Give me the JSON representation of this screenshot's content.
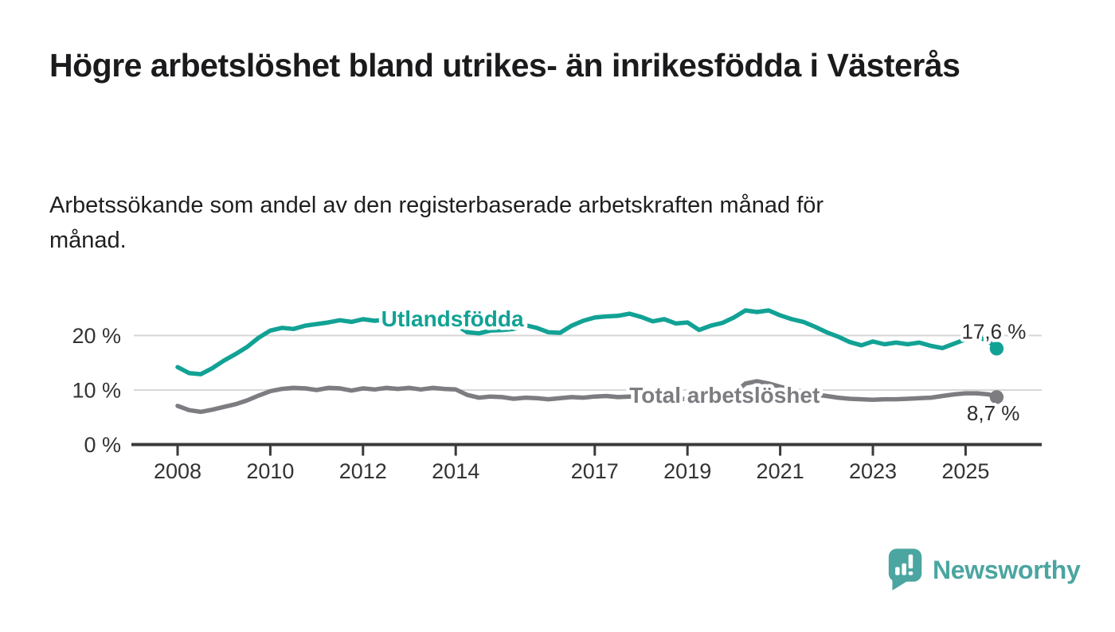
{
  "title": "Högre arbetslöshet bland utrikes- än inrikesfödda i Västerås",
  "subtitle": "Arbetssökande som andel av den registerbaserade arbetskraften månad för månad.",
  "branding": {
    "logo_text": "Newsworthy",
    "logo_icon": "speech-bubble-bar-chart-icon",
    "brand_color": "#4BA5A0"
  },
  "colors": {
    "background": "#FFFFFF",
    "title_text": "#1B1B1D",
    "axis": "#3A3A3A",
    "gridline": "#D7D7D7",
    "tick_label": "#333333",
    "value_label": "#2C2C2C",
    "series_utlandsfodda": "#12A295",
    "series_total": "#7C7C81"
  },
  "chart_data": {
    "type": "line",
    "title": "Högre arbetslöshet bland utrikes- än inrikesfödda i Västerås",
    "subtitle": "Arbetssökande som andel av den registerbaserade arbetskraften månad för månad.",
    "grid": "horizontal-light",
    "legend_position": "inline-labels-on-lines",
    "x_axis": {
      "tick_values": [
        2008,
        2010,
        2012,
        2014,
        2017,
        2019,
        2021,
        2023,
        2025
      ],
      "tick_labels": [
        "2008",
        "2010",
        "2012",
        "2014",
        "2017",
        "2019",
        "2021",
        "2023",
        "2025"
      ],
      "range": [
        2007.05,
        2026.65
      ]
    },
    "y_axis": {
      "tick_values": [
        0,
        10,
        20
      ],
      "tick_labels": [
        "0 %",
        "10 %",
        "20 %"
      ],
      "unit": "%",
      "range": [
        0,
        29
      ]
    },
    "x": [
      2008.0,
      2008.25,
      2008.5,
      2008.75,
      2009.0,
      2009.25,
      2009.5,
      2009.75,
      2010.0,
      2010.25,
      2010.5,
      2010.75,
      2011.0,
      2011.25,
      2011.5,
      2011.75,
      2012.0,
      2012.25,
      2012.5,
      2012.75,
      2013.0,
      2013.25,
      2013.5,
      2013.75,
      2014.0,
      2014.25,
      2014.5,
      2014.75,
      2015.0,
      2015.25,
      2015.5,
      2015.75,
      2016.0,
      2016.25,
      2016.5,
      2016.75,
      2017.0,
      2017.25,
      2017.5,
      2017.75,
      2018.0,
      2018.25,
      2018.5,
      2018.75,
      2019.0,
      2019.25,
      2019.5,
      2019.75,
      2020.0,
      2020.25,
      2020.5,
      2020.75,
      2021.0,
      2021.25,
      2021.5,
      2021.75,
      2022.0,
      2022.25,
      2022.5,
      2022.75,
      2023.0,
      2023.25,
      2023.5,
      2023.75,
      2024.0,
      2024.25,
      2024.5,
      2024.75,
      2025.0,
      2025.25,
      2025.5,
      2025.67
    ],
    "series": [
      {
        "name": "Utlandsfödda",
        "inline_label": {
          "text": "Utlandsfödda",
          "x": 2013.93,
          "y": 21.7
        },
        "end_label": "17,6 %",
        "end_value": 17.6,
        "end_label_side": "above",
        "color": "#12A295",
        "values": [
          14.2,
          13.1,
          12.9,
          14.0,
          15.4,
          16.6,
          17.9,
          19.6,
          20.9,
          21.4,
          21.2,
          21.8,
          22.1,
          22.4,
          22.8,
          22.5,
          23.0,
          22.7,
          22.9,
          23.0,
          23.2,
          23.4,
          23.1,
          22.8,
          22.0,
          20.6,
          20.4,
          20.9,
          21.0,
          21.2,
          21.9,
          21.4,
          20.6,
          20.5,
          21.8,
          22.7,
          23.3,
          23.5,
          23.6,
          24.0,
          23.4,
          22.6,
          23.0,
          22.2,
          22.4,
          21.0,
          21.8,
          22.3,
          23.3,
          24.6,
          24.3,
          24.6,
          23.7,
          23.0,
          22.5,
          21.6,
          20.6,
          19.8,
          18.8,
          18.2,
          18.9,
          18.4,
          18.7,
          18.4,
          18.7,
          18.1,
          17.7,
          18.5,
          19.3,
          19.8,
          18.9,
          17.6
        ]
      },
      {
        "name": "Total arbetslöshet",
        "inline_label": {
          "text": "Total arbetslöshet",
          "x": 2019.8,
          "y": 7.66
        },
        "end_label": "8,7 %",
        "end_value": 8.7,
        "end_label_side": "below",
        "color": "#7C7C81",
        "values": [
          7.1,
          6.3,
          6.0,
          6.4,
          6.9,
          7.4,
          8.1,
          9.0,
          9.8,
          10.2,
          10.4,
          10.3,
          10.0,
          10.4,
          10.3,
          9.9,
          10.3,
          10.1,
          10.4,
          10.2,
          10.4,
          10.1,
          10.4,
          10.2,
          10.1,
          9.1,
          8.6,
          8.8,
          8.7,
          8.4,
          8.6,
          8.5,
          8.3,
          8.5,
          8.7,
          8.6,
          8.8,
          8.9,
          8.7,
          8.8,
          8.6,
          8.5,
          8.4,
          8.3,
          8.4,
          8.5,
          8.7,
          8.9,
          9.3,
          11.2,
          11.6,
          11.2,
          10.6,
          10.1,
          9.7,
          9.2,
          8.9,
          8.6,
          8.4,
          8.3,
          8.2,
          8.3,
          8.3,
          8.4,
          8.5,
          8.6,
          8.9,
          9.2,
          9.4,
          9.4,
          9.2,
          8.7
        ]
      }
    ]
  }
}
